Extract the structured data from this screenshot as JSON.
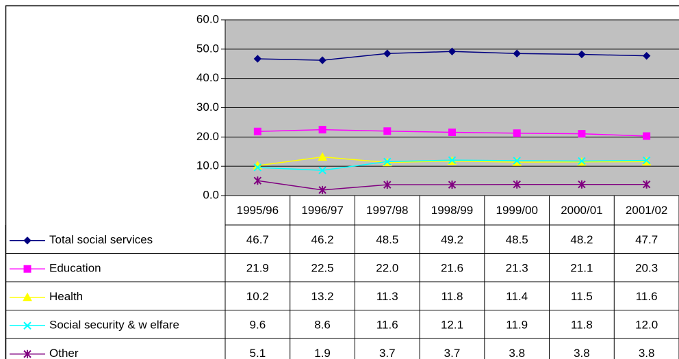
{
  "chart_data": {
    "type": "line",
    "categories": [
      "1995/96",
      "1996/97",
      "1997/98",
      "1998/99",
      "1999/00",
      "2000/01",
      "2001/02"
    ],
    "ylim": [
      0,
      60
    ],
    "yticks": [
      {
        "value": 0,
        "label": "0.0"
      },
      {
        "value": 10,
        "label": "10.0"
      },
      {
        "value": 20,
        "label": "20.0"
      },
      {
        "value": 30,
        "label": "30.0"
      },
      {
        "value": 40,
        "label": "40.0"
      },
      {
        "value": 50,
        "label": "50.0"
      },
      {
        "value": 60,
        "label": "60.0"
      }
    ],
    "grid": true,
    "plot_background": "#c0c0c0",
    "series": [
      {
        "name": "Total social services",
        "color": "#000080",
        "marker": "diamond",
        "values": [
          46.7,
          46.2,
          48.5,
          49.2,
          48.5,
          48.2,
          47.7
        ],
        "value_labels": [
          "46.7",
          "46.2",
          "48.5",
          "49.2",
          "48.5",
          "48.2",
          "47.7"
        ]
      },
      {
        "name": "Education",
        "color": "#ff00ff",
        "marker": "square",
        "values": [
          21.9,
          22.5,
          22,
          21.6,
          21.3,
          21.1,
          20.3
        ],
        "value_labels": [
          "21.9",
          "22.5",
          "22.0",
          "21.6",
          "21.3",
          "21.1",
          "20.3"
        ]
      },
      {
        "name": "Health",
        "color": "#ffff00",
        "marker": "triangle",
        "values": [
          10.2,
          13.2,
          11.3,
          11.8,
          11.4,
          11.5,
          11.6
        ],
        "value_labels": [
          "10.2",
          "13.2",
          "11.3",
          "11.8",
          "11.4",
          "11.5",
          "11.6"
        ]
      },
      {
        "name": "Social security & w elfare",
        "color": "#00ffff",
        "marker": "x",
        "values": [
          9.6,
          8.6,
          11.6,
          12.1,
          11.9,
          11.8,
          12
        ],
        "value_labels": [
          "9.6",
          "8.6",
          "11.6",
          "12.1",
          "11.9",
          "11.8",
          "12.0"
        ]
      },
      {
        "name": "Other",
        "color": "#800080",
        "marker": "star",
        "values": [
          5.1,
          1.9,
          3.7,
          3.7,
          3.8,
          3.8,
          3.8
        ],
        "value_labels": [
          "5.1",
          "1.9",
          "3.7",
          "3.7",
          "3.8",
          "3.8",
          "3.8"
        ]
      }
    ]
  }
}
